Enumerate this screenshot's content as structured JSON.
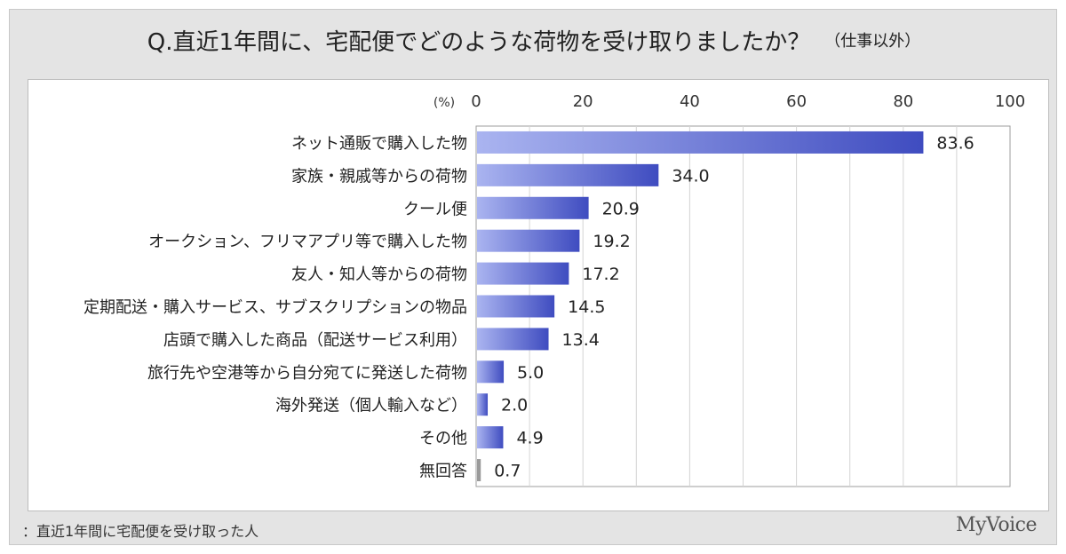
{
  "header": {
    "title": "Q.直近1年間に、宅配便でどのような荷物を受け取りましたか？",
    "subtitle": "（仕事以外）"
  },
  "footer": {
    "note": "：直近1年間に宅配便を受け取った人",
    "brand": "MyVoice"
  },
  "colors": {
    "bar_light": "#aab4f0",
    "bar_dark": "#3f4cc0",
    "no_answer_bar": "#9a9a9a",
    "frame_bg": "#e4e4e4"
  },
  "chart_data": {
    "type": "bar",
    "orientation": "horizontal",
    "axis_unit": "(%)",
    "xlim": [
      0,
      100
    ],
    "xticks": [
      0,
      20,
      40,
      60,
      80,
      100
    ],
    "grid": true,
    "categories": [
      "ネット通販で購入した物",
      "家族・親戚等からの荷物",
      "クール便",
      "オークション、フリマアプリ等で購入した物",
      "友人・知人等からの荷物",
      "定期配送・購入サービス、サブスクリプションの物品",
      "店頭で購入した商品（配送サービス利用）",
      "旅行先や空港等から自分宛てに発送した荷物",
      "海外発送（個人輸入など）",
      "その他",
      "無回答"
    ],
    "values": [
      83.6,
      34.0,
      20.9,
      19.2,
      17.2,
      14.5,
      13.4,
      5.0,
      2.0,
      4.9,
      0.7
    ],
    "value_labels": [
      "83.6",
      "34.0",
      "20.9",
      "19.2",
      "17.2",
      "14.5",
      "13.4",
      "5.0",
      "2.0",
      "4.9",
      "0.7"
    ]
  }
}
